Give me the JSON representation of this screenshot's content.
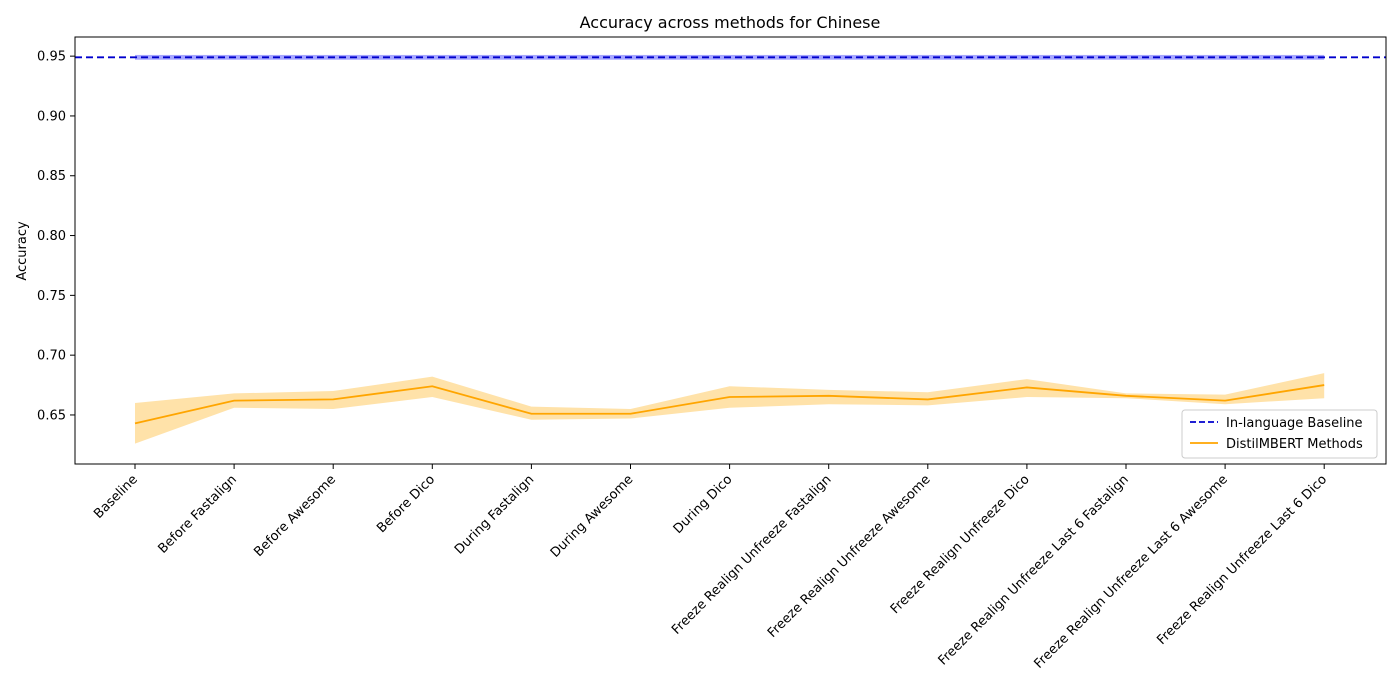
{
  "chart_data": {
    "type": "line",
    "title": "Accuracy across methods for Chinese",
    "xlabel": "",
    "ylabel": "Accuracy",
    "ylim": [
      0.609,
      0.966
    ],
    "yticks": [
      0.65,
      0.7,
      0.75,
      0.8,
      0.85,
      0.9,
      0.95
    ],
    "ytick_labels": [
      "0.65",
      "0.70",
      "0.75",
      "0.80",
      "0.85",
      "0.90",
      "0.95"
    ],
    "categories": [
      "Baseline",
      "Before Fastalign",
      "Before Awesome",
      "Before Dico",
      "During Fastalign",
      "During Awesome",
      "During Dico",
      "Freeze Realign Unfreeze Fastalign",
      "Freeze Realign Unfreeze Awesome",
      "Freeze Realign Unfreeze Dico",
      "Freeze Realign Unfreeze Last 6 Fastalign",
      "Freeze Realign Unfreeze Last 6 Awesome",
      "Freeze Realign Unfreeze Last 6 Dico"
    ],
    "grid": false,
    "legend_position": "lower-right",
    "series": [
      {
        "name": "In-language Baseline",
        "style": "dashed",
        "color": "#0000cd",
        "value": 0.949,
        "band": [
          0.947,
          0.951
        ],
        "band_color": "#6a6aff"
      },
      {
        "name": "DistilMBERT Methods",
        "style": "solid",
        "color": "#ffa500",
        "band_color": "#ffdd9a",
        "values": [
          0.643,
          0.662,
          0.663,
          0.674,
          0.651,
          0.651,
          0.665,
          0.666,
          0.663,
          0.673,
          0.666,
          0.662,
          0.675
        ],
        "lower": [
          0.626,
          0.656,
          0.655,
          0.665,
          0.646,
          0.647,
          0.656,
          0.659,
          0.658,
          0.665,
          0.664,
          0.659,
          0.664
        ],
        "upper": [
          0.66,
          0.668,
          0.67,
          0.682,
          0.657,
          0.655,
          0.674,
          0.671,
          0.669,
          0.68,
          0.668,
          0.667,
          0.685
        ]
      }
    ]
  }
}
